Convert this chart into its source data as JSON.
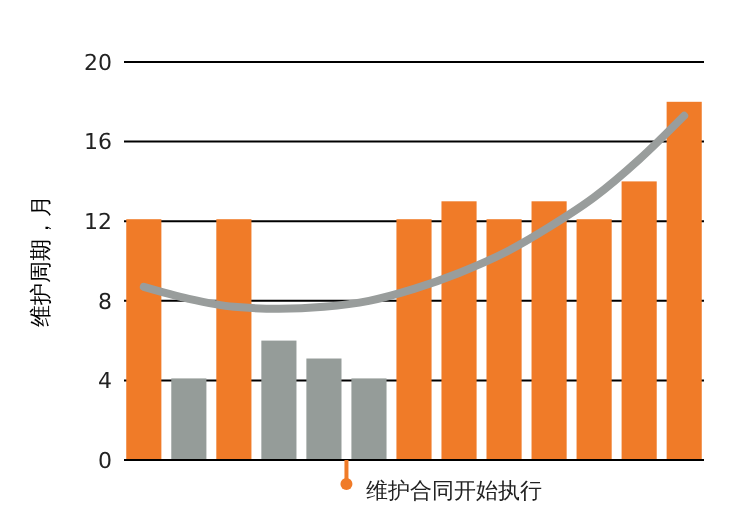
{
  "chart_data": {
    "type": "bar",
    "ylabel": "维护周期，月",
    "categories": [
      null,
      null,
      null,
      null,
      null,
      null,
      null,
      null,
      null,
      null,
      null,
      null,
      null
    ],
    "series": [
      {
        "colors": [
          "#f07b28",
          "#959c99",
          "#f07b28",
          "#959c99",
          "#959c99",
          "#959c99",
          "#f07b28",
          "#f07b28",
          "#f07b28",
          "#f07b28",
          "#f07b28",
          "#f07b28",
          "#f07b28"
        ],
        "values": [
          12.1,
          4.1,
          12.1,
          6,
          5.1,
          4.1,
          12.1,
          13,
          12.1,
          13,
          12.1,
          14,
          18
        ]
      },
      {
        "type": "line",
        "color": "#999d9c",
        "values": [
          8.7,
          8.1,
          7.7,
          7.6,
          7.7,
          8.0,
          8.6,
          9.4,
          10.4,
          11.7,
          13.2,
          15.1,
          17.3
        ]
      }
    ],
    "ylim": [
      0,
      20
    ],
    "yticks": [
      0,
      4,
      8,
      12,
      16,
      20
    ],
    "grid": "y",
    "tick_labels": "y",
    "marker": "none",
    "line_style": "solid",
    "annotations": [
      "维护合同开始执行"
    ]
  }
}
